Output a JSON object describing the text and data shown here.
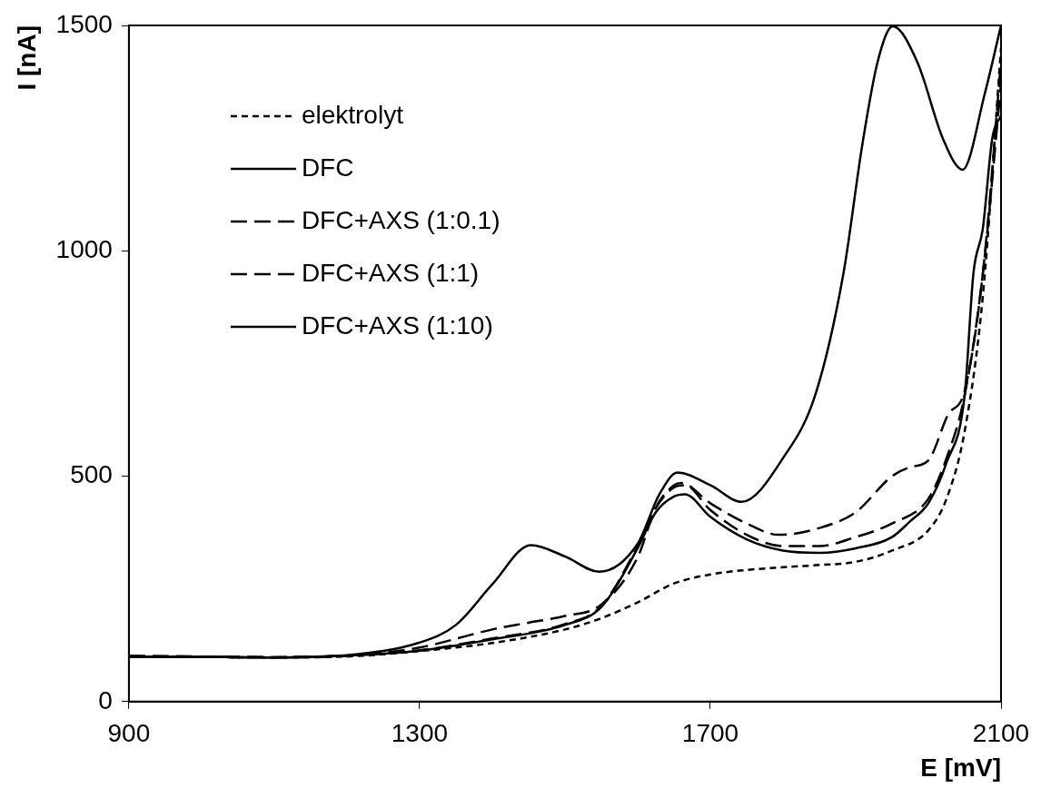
{
  "chart_data": {
    "type": "line",
    "xlabel": "E [mV]",
    "ylabel": "I [nA]",
    "xlim": [
      900,
      2100
    ],
    "xticks": [
      900,
      1300,
      1700,
      2100
    ],
    "ylim": [
      0,
      1500
    ],
    "yticks": [
      0,
      500,
      1000,
      1500
    ],
    "grid": false,
    "legend": "top left",
    "marker": "none",
    "series": [
      {
        "name": "elektrolyt",
        "color": "#000000",
        "line_style": "dotted",
        "x": [
          900,
          1000,
          1100,
          1200,
          1300,
          1400,
          1500,
          1550,
          1600,
          1650,
          1700,
          1750,
          1800,
          1850,
          1900,
          1950,
          2000,
          2025,
          2050,
          2075,
          2100
        ],
        "values": [
          100,
          99,
          98,
          100,
          112,
          130,
          160,
          185,
          220,
          262,
          282,
          292,
          298,
          303,
          310,
          335,
          380,
          450,
          600,
          900,
          1450
        ]
      },
      {
        "name": "DFC",
        "color": "#000000",
        "line_style": "solid",
        "x": [
          900,
          1000,
          1100,
          1200,
          1300,
          1400,
          1500,
          1550,
          1600,
          1625,
          1650,
          1665,
          1700,
          1750,
          1800,
          1850,
          1900,
          1950,
          1975,
          2000,
          2025,
          2050,
          2062,
          2075,
          2088,
          2100
        ],
        "values": [
          100,
          99,
          98,
          102,
          113,
          138,
          170,
          210,
          340,
          420,
          455,
          460,
          410,
          360,
          335,
          330,
          340,
          365,
          400,
          440,
          530,
          680,
          950,
          1050,
          1250,
          1300
        ]
      },
      {
        "name": "DFC+AXS (1:0.1)",
        "color": "#000000",
        "line_style": "dashed",
        "x": [
          900,
          1000,
          1100,
          1200,
          1300,
          1400,
          1500,
          1550,
          1600,
          1625,
          1650,
          1665,
          1700,
          1750,
          1800,
          1850,
          1900,
          1950,
          2000,
          2025,
          2050,
          2075,
          2100
        ],
        "values": [
          100,
          99,
          98,
          102,
          114,
          140,
          172,
          212,
          345,
          430,
          475,
          480,
          425,
          370,
          345,
          345,
          365,
          395,
          450,
          540,
          680,
          950,
          1370
        ]
      },
      {
        "name": "DFC+AXS (1:1)",
        "color": "#000000",
        "line_style": "dashed",
        "x": [
          900,
          1000,
          1100,
          1200,
          1300,
          1400,
          1450,
          1500,
          1550,
          1600,
          1625,
          1650,
          1660,
          1700,
          1750,
          1794,
          1850,
          1900,
          1950,
          1975,
          2000,
          2027,
          2050,
          2075,
          2100
        ],
        "values": [
          102,
          100,
          99,
          102,
          120,
          160,
          175,
          190,
          215,
          320,
          430,
          480,
          485,
          440,
          395,
          370,
          385,
          420,
          500,
          520,
          535,
          636,
          690,
          950,
          1420
        ]
      },
      {
        "name": "DFC+AXS (1:10)",
        "color": "#000000",
        "line_style": "solid",
        "x": [
          900,
          1000,
          1100,
          1200,
          1300,
          1350,
          1400,
          1453,
          1500,
          1547,
          1600,
          1630,
          1655,
          1700,
          1743,
          1800,
          1845,
          1883,
          1909,
          1930,
          1951,
          1985,
          2020,
          2047,
          2078,
          2100
        ],
        "values": [
          100,
          99,
          98,
          103,
          131,
          170,
          260,
          347,
          322,
          288,
          350,
          460,
          508,
          480,
          443,
          540,
          683,
          948,
          1234,
          1418,
          1498,
          1418,
          1249,
          1180,
          1351,
          1500
        ]
      }
    ]
  }
}
